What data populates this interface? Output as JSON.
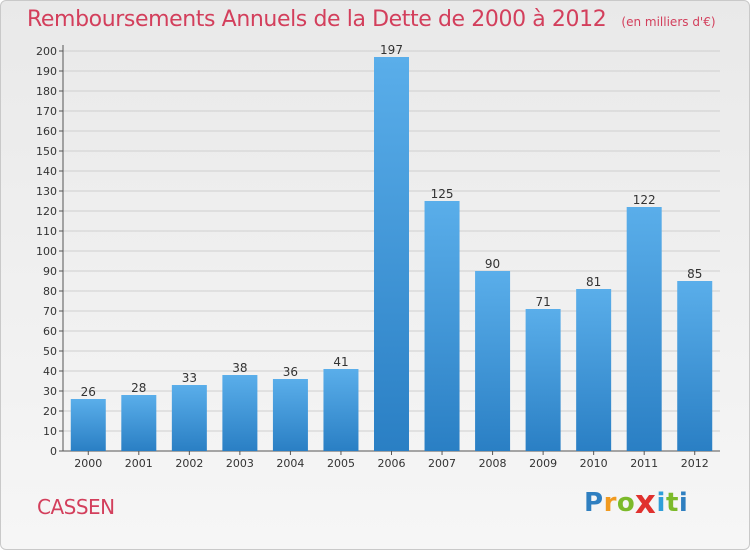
{
  "title": "Remboursements Annuels de la Dette de 2000 à 2012",
  "unit_note": "(en milliers d'€)",
  "commune": "CASSEN",
  "brand": {
    "letters": [
      "P",
      "r",
      "o",
      "x",
      "i",
      "t",
      "i"
    ],
    "colors": [
      "#2f7fc0",
      "#f19a1f",
      "#7cba2a",
      "#e0312e",
      "#2f9fd9",
      "#7cba2a",
      "#2f7fc0"
    ]
  },
  "colors": {
    "bar": "#3f97db",
    "title": "#d33f5c",
    "grid": "#cfcfcf"
  },
  "chart_data": {
    "type": "bar",
    "title": "Remboursements Annuels de la Dette de 2000 à 2012",
    "categories": [
      "2000",
      "2001",
      "2002",
      "2003",
      "2004",
      "2005",
      "2006",
      "2007",
      "2008",
      "2009",
      "2010",
      "2011",
      "2012"
    ],
    "values": [
      26,
      28,
      33,
      38,
      36,
      41,
      197,
      125,
      90,
      71,
      81,
      122,
      85
    ],
    "ylim": [
      0,
      200
    ],
    "ytick_step": 10,
    "grid": true,
    "data_labels": true
  }
}
